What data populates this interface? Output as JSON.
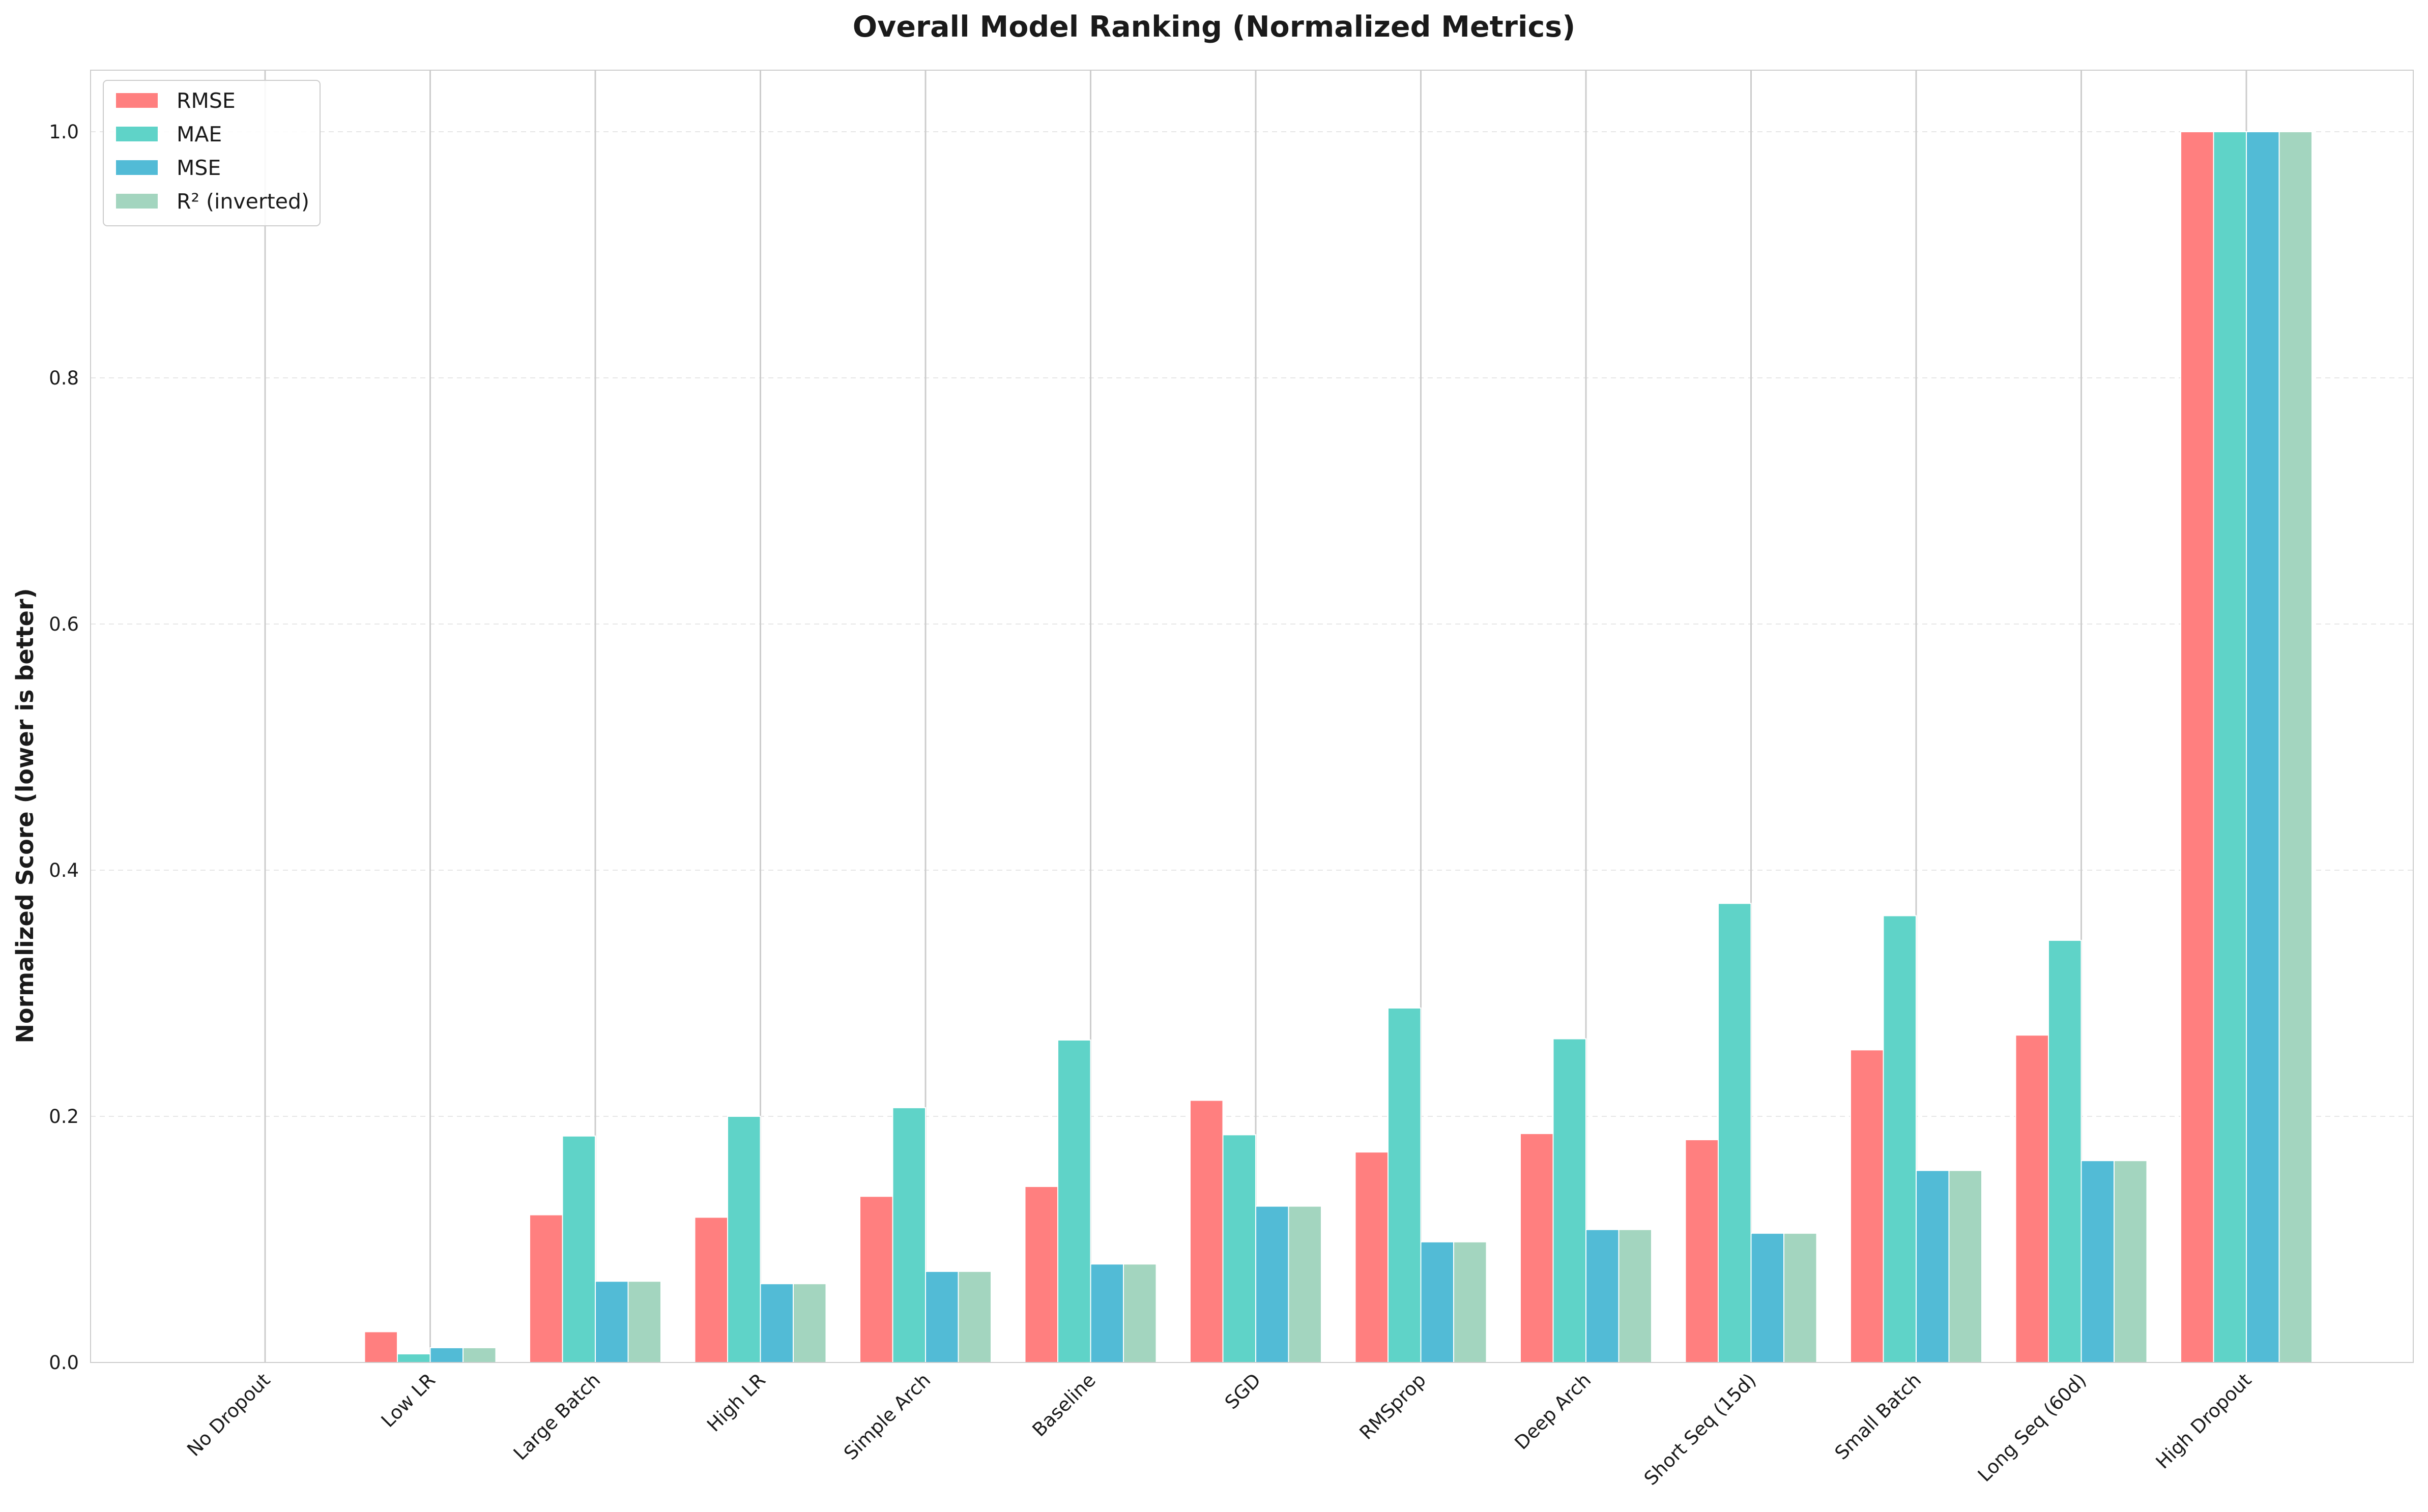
{
  "chart_data": {
    "type": "bar",
    "title": "Overall Model Ranking (Normalized Metrics)",
    "xlabel": "",
    "ylabel": "Normalized Score (lower is better)",
    "ylim": [
      0,
      1.05
    ],
    "yticks": [
      "0.0",
      "0.2",
      "0.4",
      "0.6",
      "0.8",
      "1.0"
    ],
    "ytick_values": [
      0,
      0.2,
      0.4,
      0.6,
      0.8,
      1.0
    ],
    "grid": "y dashed",
    "legend_position": "top-left",
    "categories": [
      "No Dropout",
      "Low LR",
      "Large Batch",
      "High LR",
      "Simple Arch",
      "Baseline",
      "SGD",
      "RMSprop",
      "Deep Arch",
      "Short Seq (15d)",
      "Small Batch",
      "Long Seq (60d)",
      "High Dropout"
    ],
    "series": [
      {
        "name": "RMSE",
        "color": "#ff7f7f",
        "values": [
          0.0,
          0.025,
          0.12,
          0.118,
          0.135,
          0.143,
          0.213,
          0.171,
          0.186,
          0.181,
          0.254,
          0.266,
          1.0
        ]
      },
      {
        "name": "MAE",
        "color": "#5fd3c8",
        "values": [
          0.0,
          0.007,
          0.184,
          0.2,
          0.207,
          0.262,
          0.185,
          0.288,
          0.263,
          0.373,
          0.363,
          0.343,
          1.0
        ]
      },
      {
        "name": "MSE",
        "color": "#52bbd6",
        "values": [
          0.0,
          0.012,
          0.066,
          0.064,
          0.074,
          0.08,
          0.127,
          0.098,
          0.108,
          0.105,
          0.156,
          0.164,
          1.0
        ]
      },
      {
        "name": "R² (inverted)",
        "color": "#a3d5bf",
        "values": [
          0.0,
          0.012,
          0.066,
          0.064,
          0.074,
          0.08,
          0.127,
          0.098,
          0.108,
          0.105,
          0.156,
          0.164,
          1.0
        ]
      }
    ]
  }
}
